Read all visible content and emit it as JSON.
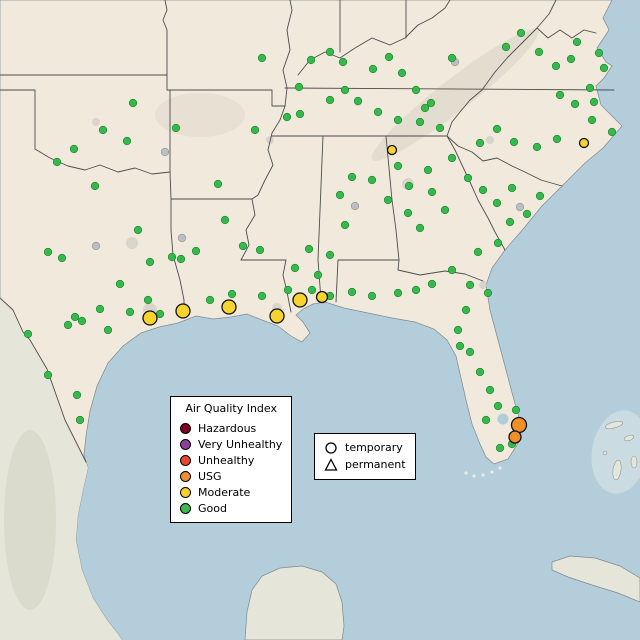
{
  "legend": {
    "title": "Air Quality Index",
    "items": [
      {
        "label": "Hazardous",
        "color": "#7e0023"
      },
      {
        "label": "Very Unhealthy",
        "color": "#8f3f97"
      },
      {
        "label": "Unhealthy",
        "color": "#e8482f"
      },
      {
        "label": "USG",
        "color": "#ee8d2e"
      },
      {
        "label": "Moderate",
        "color": "#f5d02b"
      },
      {
        "label": "Good",
        "color": "#3cb94b"
      }
    ]
  },
  "symbol_legend": {
    "items": [
      {
        "symbol": "circle",
        "label": "temporary"
      },
      {
        "symbol": "triangle",
        "label": "permanent"
      }
    ]
  },
  "map": {
    "colors": {
      "water": "#b3cdda",
      "shallow_water": "#cfe0e2",
      "land_us": "#f0e9dc",
      "land_foreign": "#e5e6d9",
      "border": "#4d4d4d",
      "urban": "#cfccc4",
      "terrain": "#aba896"
    },
    "point_style": {
      "good": {
        "color": "#35b94c",
        "stroke": "#1d7f2c",
        "stroke_width": 0.6,
        "r": 3.8
      },
      "no_data": {
        "color": "#bcbfc1",
        "stroke": "#8e9194",
        "stroke_width": 0.6,
        "r": 3.8
      },
      "moderate": {
        "color": "#f6d32d",
        "stroke": "#111111",
        "stroke_width": 1.3,
        "r": 7
      },
      "usg": {
        "color": "#ee8f28",
        "stroke": "#111111",
        "stroke_width": 1.3,
        "r": 7
      }
    },
    "points": {
      "no_data": [
        [
          165,
          152
        ],
        [
          182,
          238
        ],
        [
          355,
          206
        ],
        [
          520,
          207
        ],
        [
          455,
          62
        ],
        [
          96,
          246
        ]
      ],
      "good": [
        [
          103,
          130
        ],
        [
          127,
          141
        ],
        [
          57,
          162
        ],
        [
          95,
          186
        ],
        [
          74,
          149
        ],
        [
          133,
          103
        ],
        [
          218,
          184
        ],
        [
          176,
          128
        ],
        [
          262,
          58
        ],
        [
          287,
          117
        ],
        [
          299,
          87
        ],
        [
          311,
          60
        ],
        [
          330,
          52
        ],
        [
          255,
          130
        ],
        [
          343,
          62
        ],
        [
          345,
          90
        ],
        [
          358,
          101
        ],
        [
          373,
          69
        ],
        [
          389,
          57
        ],
        [
          402,
          73
        ],
        [
          416,
          90
        ],
        [
          431,
          103
        ],
        [
          452,
          58
        ],
        [
          506,
          47
        ],
        [
          521,
          33
        ],
        [
          539,
          52
        ],
        [
          556,
          66
        ],
        [
          571,
          59
        ],
        [
          599,
          53
        ],
        [
          604,
          68
        ],
        [
          590,
          88
        ],
        [
          577,
          42
        ],
        [
          300,
          114
        ],
        [
          330,
          100
        ],
        [
          378,
          112
        ],
        [
          398,
          120
        ],
        [
          420,
          122
        ],
        [
          440,
          128
        ],
        [
          425,
          108
        ],
        [
          480,
          143
        ],
        [
          497,
          129
        ],
        [
          514,
          142
        ],
        [
          537,
          147
        ],
        [
          557,
          139
        ],
        [
          592,
          120
        ],
        [
          594,
          102
        ],
        [
          575,
          104
        ],
        [
          560,
          95
        ],
        [
          612,
          132
        ],
        [
          196,
          251
        ],
        [
          181,
          259
        ],
        [
          243,
          246
        ],
        [
          260,
          250
        ],
        [
          225,
          220
        ],
        [
          295,
          268
        ],
        [
          309,
          249
        ],
        [
          318,
          275
        ],
        [
          330,
          255
        ],
        [
          345,
          225
        ],
        [
          352,
          177
        ],
        [
          340,
          195
        ],
        [
          388,
          200
        ],
        [
          408,
          213
        ],
        [
          420,
          228
        ],
        [
          432,
          192
        ],
        [
          445,
          210
        ],
        [
          409,
          186
        ],
        [
          372,
          180
        ],
        [
          398,
          166
        ],
        [
          428,
          170
        ],
        [
          452,
          158
        ],
        [
          468,
          178
        ],
        [
          483,
          190
        ],
        [
          497,
          203
        ],
        [
          512,
          188
        ],
        [
          527,
          214
        ],
        [
          540,
          196
        ],
        [
          510,
          222
        ],
        [
          498,
          243
        ],
        [
          478,
          252
        ],
        [
          452,
          270
        ],
        [
          432,
          284
        ],
        [
          416,
          290
        ],
        [
          398,
          293
        ],
        [
          372,
          296
        ],
        [
          352,
          292
        ],
        [
          470,
          285
        ],
        [
          488,
          293
        ],
        [
          466,
          310
        ],
        [
          458,
          330
        ],
        [
          470,
          352
        ],
        [
          480,
          372
        ],
        [
          490,
          390
        ],
        [
          498,
          406
        ],
        [
          486,
          420
        ],
        [
          516,
          410
        ],
        [
          500,
          448
        ],
        [
          512,
          444
        ],
        [
          460,
          346
        ],
        [
          150,
          262
        ],
        [
          172,
          257
        ],
        [
          138,
          230
        ],
        [
          120,
          284
        ],
        [
          148,
          300
        ],
        [
          160,
          314
        ],
        [
          108,
          330
        ],
        [
          130,
          312
        ],
        [
          48,
          252
        ],
        [
          62,
          258
        ],
        [
          100,
          309
        ],
        [
          75,
          317
        ],
        [
          68,
          325
        ],
        [
          82,
          321
        ],
        [
          48,
          375
        ],
        [
          77,
          395
        ],
        [
          80,
          420
        ],
        [
          28,
          334
        ],
        [
          232,
          294
        ],
        [
          262,
          296
        ],
        [
          288,
          290
        ],
        [
          210,
          300
        ],
        [
          312,
          290
        ],
        [
          330,
          296
        ]
      ],
      "moderate": [
        [
          150,
          318,
          7
        ],
        [
          183,
          311,
          7
        ],
        [
          229,
          307,
          7
        ],
        [
          277,
          316,
          7
        ],
        [
          300,
          300,
          7
        ],
        [
          322,
          297,
          5.5
        ],
        [
          392,
          150,
          4.5
        ],
        [
          584,
          143,
          4.5
        ]
      ],
      "usg": [
        [
          519,
          425,
          7.5
        ],
        [
          515,
          437,
          6
        ]
      ]
    }
  }
}
